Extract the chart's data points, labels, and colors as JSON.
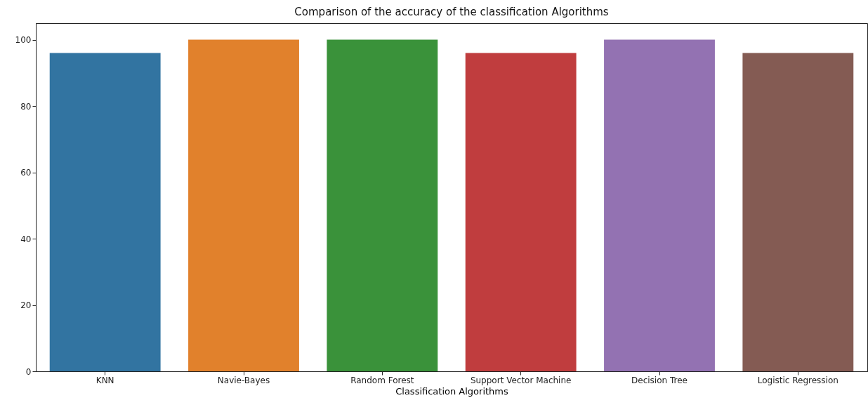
{
  "chart_data": {
    "type": "bar",
    "title": "Comparison of the accuracy of the classification Algorithms",
    "xlabel": "Classification Algorithms",
    "categories": [
      "KNN",
      "Navie-Bayes",
      "Random Forest",
      "Support Vector Machine",
      "Decision Tree",
      "Logistic Regression"
    ],
    "values": [
      96,
      100,
      100,
      96,
      100,
      96
    ],
    "colors": [
      "#3274a1",
      "#e1812c",
      "#3a923a",
      "#c03d3e",
      "#9372b2",
      "#845b53"
    ],
    "ylim": [
      0,
      105
    ],
    "yticks": [
      0,
      20,
      40,
      60,
      80,
      100
    ],
    "grid": false
  }
}
